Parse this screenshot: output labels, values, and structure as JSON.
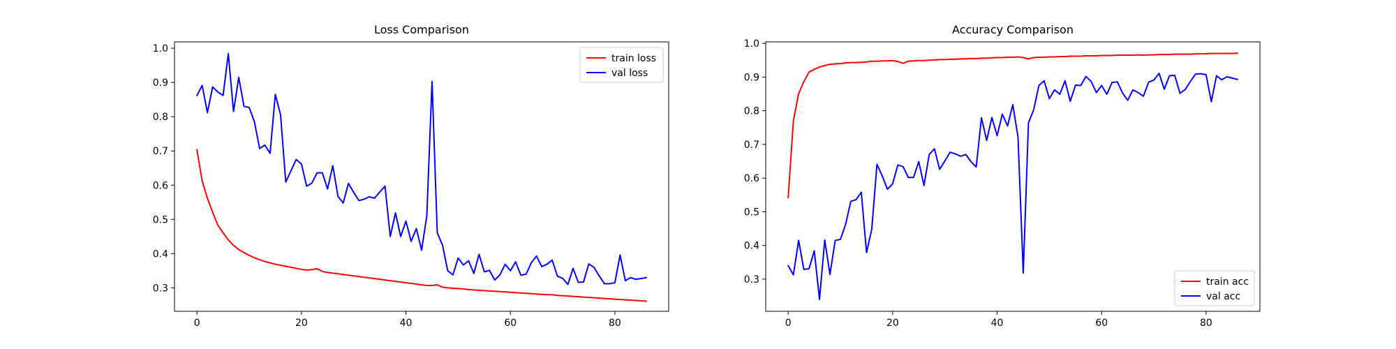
{
  "chart_data": [
    {
      "type": "line",
      "title": "Loss Comparison",
      "xlabel": "",
      "ylabel": "",
      "xlim": [
        -4.3,
        90.3
      ],
      "ylim": [
        0.2315,
        1.0185
      ],
      "xticks": [
        0,
        20,
        40,
        60,
        80
      ],
      "yticks": [
        0.3,
        0.4,
        0.5,
        0.6,
        0.7,
        0.8,
        0.9,
        1.0
      ],
      "legend_position": "top-right",
      "grid": false,
      "series": [
        {
          "name": "train loss",
          "color": "#ff0000",
          "x_start": 0,
          "values": [
            0.703,
            0.612,
            0.562,
            0.521,
            0.483,
            0.461,
            0.44,
            0.424,
            0.412,
            0.403,
            0.395,
            0.388,
            0.382,
            0.377,
            0.373,
            0.369,
            0.366,
            0.363,
            0.36,
            0.357,
            0.354,
            0.352,
            0.353,
            0.356,
            0.348,
            0.345,
            0.343,
            0.341,
            0.339,
            0.337,
            0.335,
            0.333,
            0.331,
            0.329,
            0.327,
            0.325,
            0.323,
            0.321,
            0.319,
            0.317,
            0.315,
            0.313,
            0.311,
            0.309,
            0.307,
            0.307,
            0.309,
            0.302,
            0.3,
            0.299,
            0.298,
            0.297,
            0.295,
            0.294,
            0.293,
            0.292,
            0.291,
            0.29,
            0.289,
            0.288,
            0.287,
            0.286,
            0.285,
            0.284,
            0.283,
            0.282,
            0.281,
            0.28,
            0.28,
            0.278,
            0.277,
            0.276,
            0.275,
            0.274,
            0.273,
            0.272,
            0.271,
            0.27,
            0.269,
            0.268,
            0.267,
            0.266,
            0.265,
            0.264,
            0.263,
            0.262,
            0.261
          ]
        },
        {
          "name": "val loss",
          "color": "#0000ff",
          "x_start": 0,
          "values": [
            0.862,
            0.891,
            0.812,
            0.887,
            0.872,
            0.862,
            0.984,
            0.815,
            0.915,
            0.83,
            0.827,
            0.785,
            0.707,
            0.717,
            0.693,
            0.865,
            0.806,
            0.609,
            0.642,
            0.675,
            0.662,
            0.597,
            0.606,
            0.636,
            0.636,
            0.589,
            0.657,
            0.567,
            0.548,
            0.605,
            0.579,
            0.555,
            0.559,
            0.566,
            0.562,
            0.58,
            0.597,
            0.45,
            0.519,
            0.45,
            0.495,
            0.436,
            0.473,
            0.41,
            0.51,
            0.903,
            0.461,
            0.425,
            0.35,
            0.338,
            0.387,
            0.367,
            0.379,
            0.342,
            0.398,
            0.347,
            0.351,
            0.323,
            0.338,
            0.369,
            0.35,
            0.376,
            0.337,
            0.34,
            0.373,
            0.393,
            0.362,
            0.369,
            0.381,
            0.334,
            0.328,
            0.31,
            0.357,
            0.316,
            0.317,
            0.37,
            0.36,
            0.335,
            0.312,
            0.312,
            0.315,
            0.396,
            0.321,
            0.33,
            0.325,
            0.327,
            0.33
          ]
        }
      ]
    },
    {
      "type": "line",
      "title": "Accuracy Comparison",
      "xlabel": "",
      "ylabel": "",
      "xlim": [
        -4.3,
        90.3
      ],
      "ylim": [
        0.2045,
        1.0045
      ],
      "xticks": [
        0,
        20,
        40,
        60,
        80
      ],
      "yticks": [
        0.3,
        0.4,
        0.5,
        0.6,
        0.7,
        0.8,
        0.9,
        1.0
      ],
      "legend_position": "bottom-right",
      "grid": false,
      "series": [
        {
          "name": "train acc",
          "color": "#ff0000",
          "x_start": 0,
          "values": [
            0.542,
            0.77,
            0.851,
            0.886,
            0.915,
            0.923,
            0.93,
            0.934,
            0.938,
            0.939,
            0.94,
            0.942,
            0.943,
            0.943,
            0.944,
            0.945,
            0.947,
            0.947,
            0.948,
            0.948,
            0.949,
            0.946,
            0.941,
            0.947,
            0.948,
            0.949,
            0.949,
            0.95,
            0.951,
            0.952,
            0.952,
            0.953,
            0.953,
            0.954,
            0.954,
            0.955,
            0.955,
            0.956,
            0.956,
            0.957,
            0.958,
            0.958,
            0.959,
            0.959,
            0.96,
            0.958,
            0.954,
            0.958,
            0.959,
            0.959,
            0.96,
            0.96,
            0.961,
            0.961,
            0.962,
            0.962,
            0.962,
            0.963,
            0.963,
            0.963,
            0.964,
            0.964,
            0.964,
            0.965,
            0.965,
            0.965,
            0.965,
            0.966,
            0.965,
            0.966,
            0.966,
            0.967,
            0.967,
            0.967,
            0.968,
            0.968,
            0.968,
            0.968,
            0.969,
            0.969,
            0.969,
            0.97,
            0.97,
            0.97,
            0.97,
            0.97,
            0.971
          ]
        },
        {
          "name": "val acc",
          "color": "#0000ff",
          "x_start": 0,
          "values": [
            0.34,
            0.313,
            0.415,
            0.329,
            0.331,
            0.384,
            0.24,
            0.416,
            0.314,
            0.415,
            0.418,
            0.463,
            0.531,
            0.536,
            0.558,
            0.379,
            0.448,
            0.641,
            0.607,
            0.567,
            0.583,
            0.639,
            0.634,
            0.602,
            0.602,
            0.649,
            0.578,
            0.67,
            0.687,
            0.626,
            0.651,
            0.677,
            0.672,
            0.665,
            0.67,
            0.649,
            0.633,
            0.779,
            0.712,
            0.78,
            0.726,
            0.79,
            0.755,
            0.818,
            0.722,
            0.318,
            0.764,
            0.803,
            0.875,
            0.889,
            0.836,
            0.862,
            0.849,
            0.889,
            0.828,
            0.876,
            0.875,
            0.902,
            0.887,
            0.854,
            0.875,
            0.849,
            0.884,
            0.886,
            0.853,
            0.831,
            0.862,
            0.854,
            0.843,
            0.885,
            0.891,
            0.911,
            0.864,
            0.904,
            0.905,
            0.852,
            0.863,
            0.887,
            0.909,
            0.91,
            0.907,
            0.827,
            0.904,
            0.892,
            0.901,
            0.897,
            0.893
          ]
        }
      ]
    }
  ]
}
